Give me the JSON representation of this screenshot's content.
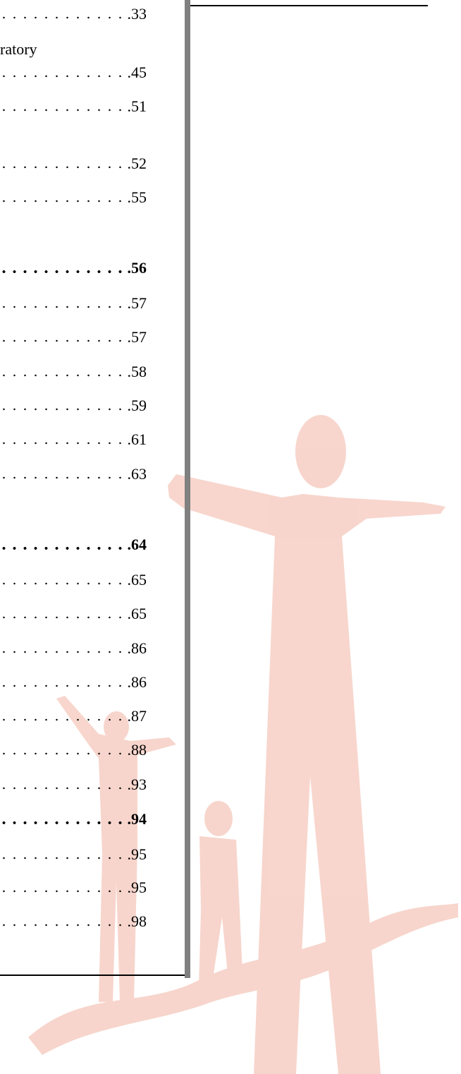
{
  "fragment": "ratory",
  "entries": [
    {
      "page": "33"
    },
    {
      "page": "45"
    },
    {
      "page": "51"
    },
    {
      "page": "52"
    },
    {
      "page": "55"
    },
    {
      "page": "56",
      "bold": true
    },
    {
      "page": "57"
    },
    {
      "page": "57"
    },
    {
      "page": "58"
    },
    {
      "page": "59"
    },
    {
      "page": "61"
    },
    {
      "page": "63"
    },
    {
      "page": "64",
      "bold": true
    },
    {
      "page": "65"
    },
    {
      "page": "65"
    },
    {
      "page": "86"
    },
    {
      "page": "86"
    },
    {
      "page": "87"
    },
    {
      "page": "88"
    },
    {
      "page": "93"
    },
    {
      "page": "94",
      "bold": true
    },
    {
      "page": "95"
    },
    {
      "page": "95"
    },
    {
      "page": "98"
    }
  ]
}
